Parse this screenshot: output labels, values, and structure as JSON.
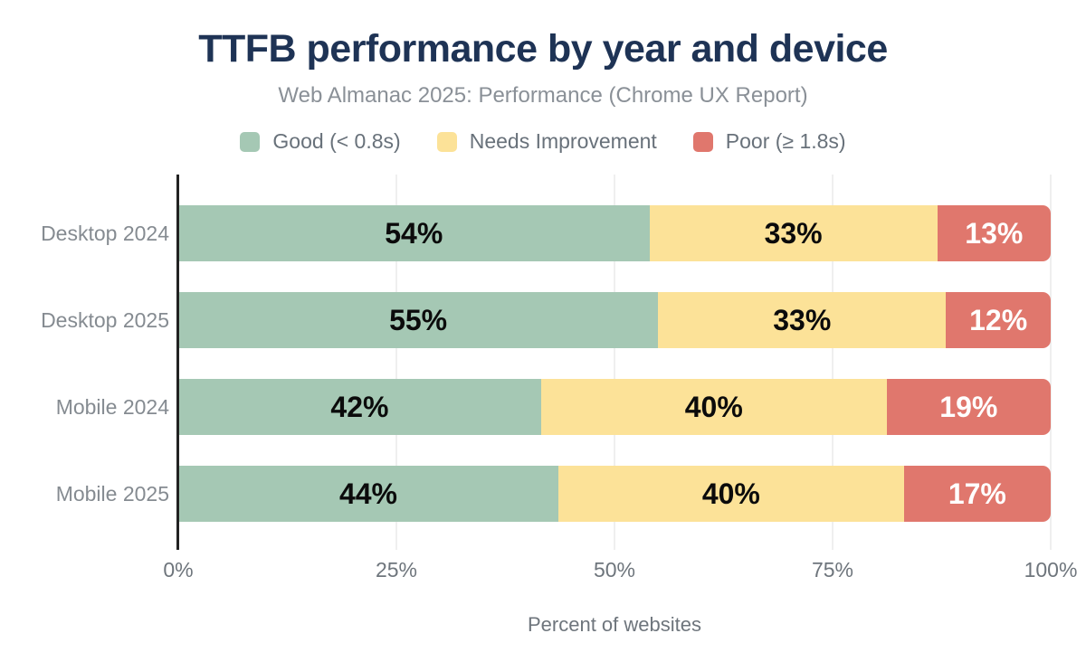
{
  "title": "TTFB performance by year and device",
  "subtitle": "Web Almanac 2025: Performance (Chrome UX Report)",
  "legend": [
    {
      "label": "Good (< 0.8s)",
      "color": "#a5c8b4"
    },
    {
      "label": "Needs Improvement",
      "color": "#fce298"
    },
    {
      "label": "Poor (≥ 1.8s)",
      "color": "#e0776d"
    }
  ],
  "chart_data": {
    "type": "bar",
    "orientation": "horizontal",
    "stacked": true,
    "title": "TTFB performance by year and device",
    "subtitle": "Web Almanac 2025: Performance (Chrome UX Report)",
    "categories": [
      "Desktop 2024",
      "Desktop 2025",
      "Mobile 2024",
      "Mobile 2025"
    ],
    "series": [
      {
        "name": "Good (< 0.8s)",
        "color": "#a5c8b4",
        "label_color": "#0b0b0b",
        "values": [
          54,
          55,
          42,
          44
        ]
      },
      {
        "name": "Needs Improvement",
        "color": "#fce298",
        "label_color": "#0b0b0b",
        "values": [
          33,
          33,
          40,
          40
        ]
      },
      {
        "name": "Poor (≥ 1.8s)",
        "color": "#e0776d",
        "label_color": "#ffffff",
        "values": [
          13,
          12,
          19,
          17
        ]
      }
    ],
    "data_labels": [
      [
        "54%",
        "33%",
        "13%"
      ],
      [
        "55%",
        "33%",
        "12%"
      ],
      [
        "42%",
        "40%",
        "19%"
      ],
      [
        "44%",
        "40%",
        "17%"
      ]
    ],
    "xlabel": "Percent of websites",
    "x_ticks": [
      "0%",
      "25%",
      "50%",
      "75%",
      "100%"
    ],
    "x_tick_positions": [
      0,
      25,
      50,
      75,
      100
    ],
    "xlim": [
      0,
      100
    ],
    "value_suffix": "%",
    "grid": true,
    "legend_position": "top"
  },
  "colors": {
    "title": "#1e3355",
    "subtitle": "#8a9097",
    "good": "#a5c8b4",
    "needs_improvement": "#fce298",
    "poor": "#e0776d",
    "axis_line": "#222222",
    "gridline": "#efefef",
    "axis_text": "#6e757c",
    "category_text": "#858b91",
    "background": "#ffffff"
  }
}
